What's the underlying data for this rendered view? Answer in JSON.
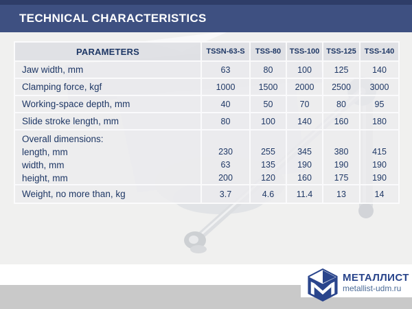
{
  "header": {
    "title": "TECHNICAL CHARACTERISTICS"
  },
  "table": {
    "param_header": "PARAMETERS",
    "columns": [
      "TSSN-63-S",
      "TSS-80",
      "TSS-100",
      "TSS-125",
      "TSS-140"
    ],
    "rows": [
      {
        "type": "simple",
        "label": "Jaw width, mm",
        "values": [
          "63",
          "80",
          "100",
          "125",
          "140"
        ]
      },
      {
        "type": "simple",
        "label": "Clamping force, kgf",
        "values": [
          "1000",
          "1500",
          "2000",
          "2500",
          "3000"
        ]
      },
      {
        "type": "simple",
        "label": "Working-space depth, mm",
        "values": [
          "40",
          "50",
          "70",
          "80",
          "95"
        ]
      },
      {
        "type": "simple",
        "label": "Slide stroke length, mm",
        "values": [
          "80",
          "100",
          "140",
          "160",
          "180"
        ]
      },
      {
        "type": "multi",
        "label_lines": [
          "Overall dimensions:",
          "length, mm",
          "width, mm",
          "height, mm"
        ],
        "values": [
          [
            "230",
            "63",
            "200"
          ],
          [
            "255",
            "135",
            "120"
          ],
          [
            "345",
            "190",
            "160"
          ],
          [
            "380",
            "190",
            "175"
          ],
          [
            "415",
            "190",
            "190"
          ]
        ]
      },
      {
        "type": "simple",
        "label": "Weight, no more than, kg",
        "values": [
          "3.7",
          "4.6",
          "11.4",
          "13",
          "14"
        ]
      }
    ]
  },
  "footer": {
    "logo_title": "МЕТАЛЛИСТ",
    "logo_url": "metallist-udm.ru"
  },
  "colors": {
    "title_bar": "#3e5081",
    "title_bar_top": "#2e3d68",
    "text_navy": "#1e3765",
    "band_gray": "#c9c9c9",
    "logo_blue": "#27438a",
    "logo_url_blue": "#4a6a96"
  }
}
